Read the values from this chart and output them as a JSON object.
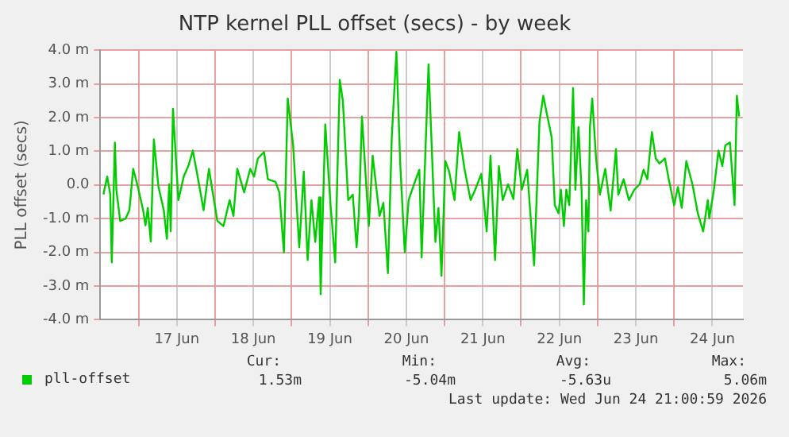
{
  "chart_data": {
    "type": "line",
    "title": "NTP kernel PLL offset (secs) - by week",
    "ylabel": "PLL offset (secs)",
    "xlim": [
      "2026-06-16T12:00",
      "2026-06-24T21:36"
    ],
    "xticks": [
      {
        "value": "2026-06-17T00:00",
        "label": null
      },
      {
        "value": "2026-06-17T12:00",
        "label": "17 Jun"
      },
      {
        "value": "2026-06-18T00:00",
        "label": null
      },
      {
        "value": "2026-06-18T12:00",
        "label": "18 Jun"
      },
      {
        "value": "2026-06-19T00:00",
        "label": null
      },
      {
        "value": "2026-06-19T12:00",
        "label": "19 Jun"
      },
      {
        "value": "2026-06-20T00:00",
        "label": null
      },
      {
        "value": "2026-06-20T12:00",
        "label": "20 Jun"
      },
      {
        "value": "2026-06-21T00:00",
        "label": null
      },
      {
        "value": "2026-06-21T12:00",
        "label": "21 Jun"
      },
      {
        "value": "2026-06-22T00:00",
        "label": null
      },
      {
        "value": "2026-06-22T12:00",
        "label": "22 Jun"
      },
      {
        "value": "2026-06-23T00:00",
        "label": null
      },
      {
        "value": "2026-06-23T12:00",
        "label": "23 Jun"
      },
      {
        "value": "2026-06-24T00:00",
        "label": null
      },
      {
        "value": "2026-06-24T12:00",
        "label": "24 Jun"
      }
    ],
    "ylim": [
      -4,
      4
    ],
    "yticks": [
      {
        "value": -4,
        "label": "-4.0 m"
      },
      {
        "value": -3,
        "label": "-3.0 m"
      },
      {
        "value": -2,
        "label": "-2.0 m"
      },
      {
        "value": -1,
        "label": "-1.0 m"
      },
      {
        "value": 0,
        "label": "0.0"
      },
      {
        "value": 1,
        "label": "1.0 m"
      },
      {
        "value": 2,
        "label": "2.0 m"
      },
      {
        "value": 3,
        "label": "3.0 m"
      },
      {
        "value": 4,
        "label": "4.0 m"
      }
    ],
    "grid": true,
    "legend": "bottom",
    "marker": "none",
    "line_style": "solid",
    "series": [
      {
        "name": "pll-offset",
        "color": "#00cc00",
        "x": [
          "2026-06-16T12:58",
          "2026-06-16T14:10",
          "2026-06-16T15:07",
          "2026-06-16T15:36",
          "2026-06-16T16:34",
          "2026-06-16T17:02",
          "2026-06-16T18:14",
          "2026-06-16T19:55",
          "2026-06-16T21:07",
          "2026-06-16T22:19",
          "2026-06-16T23:46",
          "2026-06-17T01:26",
          "2026-06-17T02:10",
          "2026-06-17T02:53",
          "2026-06-17T03:50",
          "2026-06-17T04:48",
          "2026-06-17T06:14",
          "2026-06-17T07:55",
          "2026-06-17T08:53",
          "2026-06-17T09:36",
          "2026-06-17T10:05",
          "2026-06-17T10:48",
          "2026-06-17T12:29",
          "2026-06-17T14:10",
          "2026-06-17T15:36",
          "2026-06-17T17:02",
          "2026-06-17T18:58",
          "2026-06-17T20:24",
          "2026-06-17T22:05",
          "2026-06-17T23:31",
          "2026-06-18T00:43",
          "2026-06-18T02:38",
          "2026-06-18T04:34",
          "2026-06-18T05:46",
          "2026-06-18T06:58",
          "2026-06-18T09:07",
          "2026-06-18T11:02",
          "2026-06-18T12:14",
          "2026-06-18T13:26",
          "2026-06-18T15:22",
          "2026-06-18T16:34",
          "2026-06-18T18:58",
          "2026-06-18T20:10",
          "2026-06-18T21:36",
          "2026-06-18T22:48",
          "2026-06-19T00:29",
          "2026-06-19T02:24",
          "2026-06-19T03:50",
          "2026-06-19T05:02",
          "2026-06-19T06:14",
          "2026-06-19T07:26",
          "2026-06-19T08:38",
          "2026-06-19T09:07",
          "2026-06-19T10:34",
          "2026-06-19T12:14",
          "2026-06-19T13:41",
          "2026-06-19T15:07",
          "2026-06-19T16:05",
          "2026-06-19T17:46",
          "2026-06-19T19:12",
          "2026-06-19T20:24",
          "2026-06-19T21:07",
          "2026-06-19T22:05",
          "2026-06-20T00:14",
          "2026-06-20T01:26",
          "2026-06-20T03:36",
          "2026-06-20T04:48",
          "2026-06-20T06:14",
          "2026-06-20T07:26",
          "2026-06-20T08:53",
          "2026-06-20T10:05",
          "2026-06-20T11:31",
          "2026-06-20T12:43",
          "2026-06-20T14:24",
          "2026-06-20T16:05",
          "2026-06-20T16:48",
          "2026-06-20T18:58",
          "2026-06-20T21:07",
          "2026-06-20T22:05",
          "2026-06-20T23:02",
          "2026-06-21T00:14",
          "2026-06-21T01:26",
          "2026-06-21T03:07",
          "2026-06-21T04:34",
          "2026-06-21T06:14",
          "2026-06-21T08:10",
          "2026-06-21T09:36",
          "2026-06-21T11:31",
          "2026-06-21T13:12",
          "2026-06-21T14:24",
          "2026-06-21T15:50",
          "2026-06-21T17:02",
          "2026-06-21T18:14",
          "2026-06-21T19:55",
          "2026-06-21T21:36",
          "2026-06-21T22:48",
          "2026-06-22T00:14",
          "2026-06-22T01:55",
          "2026-06-22T04:05",
          "2026-06-22T05:46",
          "2026-06-22T06:58",
          "2026-06-22T07:55",
          "2026-06-22T09:36",
          "2026-06-22T10:34",
          "2026-06-22T11:46",
          "2026-06-22T12:29",
          "2026-06-22T13:26",
          "2026-06-22T14:10",
          "2026-06-22T15:07",
          "2026-06-22T16:19",
          "2026-06-22T17:02",
          "2026-06-22T18:00",
          "2026-06-22T18:58",
          "2026-06-22T19:41",
          "2026-06-22T20:24",
          "2026-06-22T21:07",
          "2026-06-22T21:36",
          "2026-06-22T22:19",
          "2026-06-22T23:31",
          "2026-06-23T00:43",
          "2026-06-23T02:24",
          "2026-06-23T04:05",
          "2026-06-23T05:46",
          "2026-06-23T06:29",
          "2026-06-23T08:10",
          "2026-06-23T09:50",
          "2026-06-23T11:31",
          "2026-06-23T13:12",
          "2026-06-23T14:24",
          "2026-06-23T15:36",
          "2026-06-23T17:02",
          "2026-06-23T18:14",
          "2026-06-23T19:26",
          "2026-06-23T21:07",
          "2026-06-23T22:19",
          "2026-06-24T00:00",
          "2026-06-24T01:12",
          "2026-06-24T02:24",
          "2026-06-24T03:50",
          "2026-06-24T05:46",
          "2026-06-24T07:26",
          "2026-06-24T09:07",
          "2026-06-24T10:34",
          "2026-06-24T11:02",
          "2026-06-24T12:29",
          "2026-06-24T13:55",
          "2026-06-24T15:07",
          "2026-06-24T16:05",
          "2026-06-24T17:31",
          "2026-06-24T18:58",
          "2026-06-24T19:41",
          "2026-06-24T20:24"
        ],
        "values": [
          -0.28,
          0.25,
          -0.28,
          -2.3,
          1.26,
          -0.14,
          -1.07,
          -1.0,
          -0.75,
          0.48,
          -0.05,
          -0.75,
          -1.2,
          -0.68,
          -1.68,
          1.35,
          -0.05,
          -0.75,
          -1.6,
          0.02,
          -1.38,
          2.26,
          -0.45,
          0.25,
          0.56,
          1.02,
          0.02,
          -0.75,
          0.48,
          -0.37,
          -1.07,
          -1.22,
          -0.45,
          -0.92,
          0.48,
          -0.22,
          0.48,
          0.25,
          0.79,
          0.98,
          0.17,
          0.09,
          -0.22,
          -2.0,
          2.57,
          1.18,
          -1.85,
          0.4,
          -2.23,
          -0.45,
          -1.69,
          -0.37,
          -3.24,
          1.8,
          -0.6,
          -2.3,
          3.12,
          2.5,
          -0.45,
          -0.29,
          -1.85,
          -0.84,
          2.03,
          -1.22,
          0.87,
          -0.92,
          -0.53,
          -2.62,
          1.41,
          3.95,
          0.64,
          -2.0,
          -0.45,
          0.02,
          0.45,
          -2.15,
          3.58,
          -1.69,
          -0.68,
          -2.7,
          0.71,
          0.4,
          -0.45,
          1.57,
          0.48,
          -0.45,
          -0.14,
          0.33,
          -1.38,
          0.87,
          -2.23,
          0.56,
          -0.45,
          0.02,
          -0.42,
          1.07,
          -0.14,
          0.45,
          -2.39,
          1.87,
          2.65,
          2.19,
          1.41,
          -0.6,
          -0.84,
          -0.14,
          -1.22,
          -0.14,
          -0.6,
          2.88,
          -0.14,
          1.72,
          -0.14,
          -3.55,
          -0.45,
          -1.38,
          1.72,
          2.57,
          0.79,
          -0.29,
          0.48,
          -0.76,
          1.07,
          -0.29,
          0.17,
          -0.45,
          -0.14,
          0.02,
          0.45,
          0.17,
          1.57,
          0.79,
          0.64,
          0.79,
          0.17,
          -0.6,
          -0.06,
          -0.68,
          0.71,
          0.02,
          -0.84,
          -1.38,
          -0.45,
          -0.99,
          -0.14,
          1.02,
          0.56,
          1.18,
          1.26,
          -0.6,
          2.65,
          2.03
        ]
      }
    ],
    "annotations": [
      "Cur:",
      "Min:",
      "Avg:",
      "Max:",
      "1.53m",
      "-5.04m",
      "-5.63u",
      "5.06m",
      "Last update: Wed Jun 24 21:00:59 2026"
    ]
  }
}
